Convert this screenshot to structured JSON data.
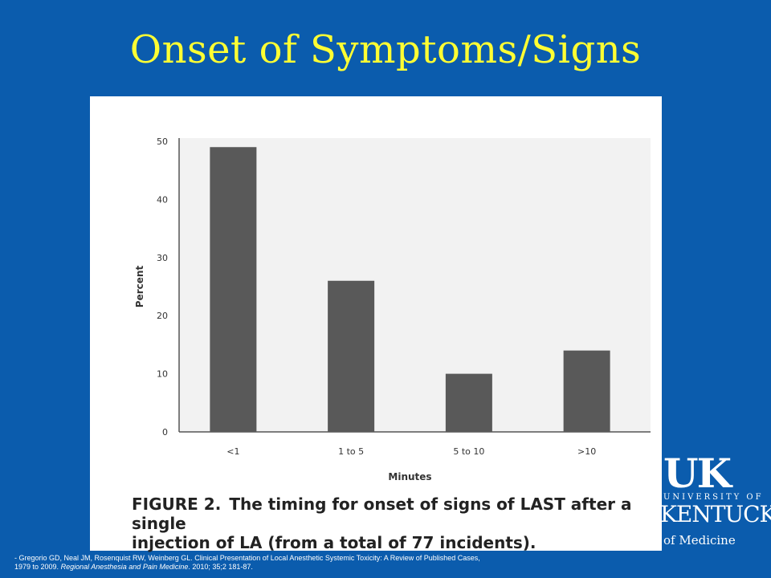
{
  "slide": {
    "title": "Onset of Symptoms/Signs"
  },
  "figure": {
    "caption_lead": "FIGURE 2.",
    "caption_line1": "The timing for onset of signs of LAST after a single",
    "caption_line2": "injection of LA (from a total of 77 incidents)."
  },
  "logo": {
    "mark": "UK",
    "university_of": "UNIVERSITY OF",
    "state": "KENTUCKY",
    "college": "of Medicine"
  },
  "citation": {
    "line1": "- Gregorio GD, Neal JM, Rosenquist RW, Weinberg GL. Clinical Presentation of Local Anesthetic Systemic Toxicity: A Review of Published Cases,",
    "line2_plain": "1979 to 2009.",
    "line2_italic": "Regional Anesthesia and Pain Medicine",
    "line2_tail": ". 2010; 35;2 181-87."
  },
  "colors": {
    "background": "#0b5cad",
    "title": "#ffff33",
    "bar": "#595959",
    "plot_bg": "#f2f2f2"
  },
  "chart_data": {
    "type": "bar",
    "categories": [
      "<1",
      "1 to 5",
      "5 to 10",
      ">10"
    ],
    "values": [
      49,
      26,
      10,
      14
    ],
    "title": "",
    "xlabel": "Minutes",
    "ylabel": "Percent",
    "ylim": [
      0,
      50
    ],
    "yticks": [
      0,
      10,
      20,
      30,
      40,
      50
    ],
    "grid": false,
    "legend": "none"
  }
}
